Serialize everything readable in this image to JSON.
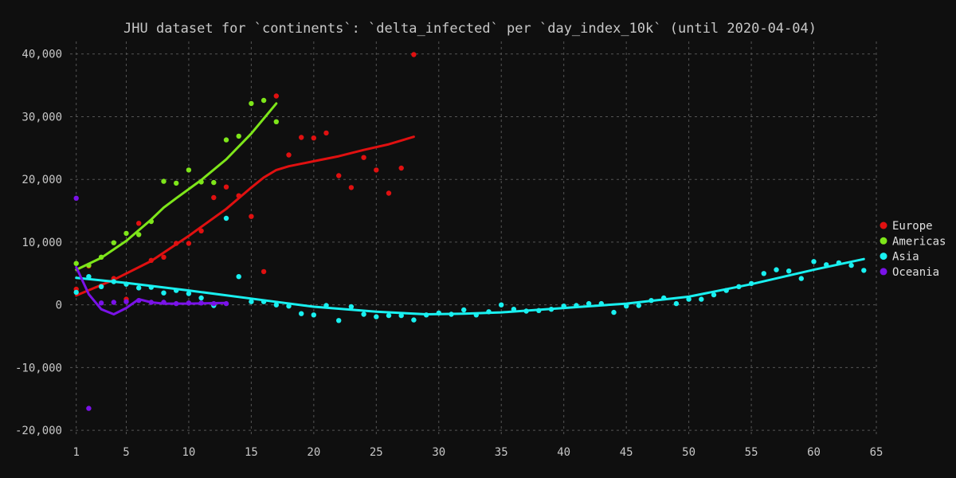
{
  "chart_data": {
    "type": "scatter",
    "title": "JHU dataset for `continents`: `delta_infected` per `day_index_10k` (until 2020-04-04)",
    "xlabel": "",
    "ylabel": "",
    "xlim": [
      0,
      65
    ],
    "ylim": [
      -21000,
      42000
    ],
    "x_ticks": [
      1,
      5,
      10,
      15,
      20,
      25,
      30,
      35,
      40,
      45,
      50,
      55,
      60,
      65
    ],
    "y_ticks": [
      -20000,
      -10000,
      0,
      10000,
      20000,
      30000,
      40000
    ],
    "y_tick_labels": [
      "-20,000",
      "-10,000",
      "0",
      "10,000",
      "20,000",
      "30,000",
      "40,000"
    ],
    "grid": true,
    "legend_position": "right",
    "series": [
      {
        "name": "Europe",
        "color": "#e01010",
        "points": [
          [
            1,
            2500
          ],
          [
            2,
            6200
          ],
          [
            3,
            3000
          ],
          [
            4,
            4200
          ],
          [
            5,
            900
          ],
          [
            6,
            13000
          ],
          [
            7,
            7100
          ],
          [
            8,
            7600
          ],
          [
            9,
            9800
          ],
          [
            10,
            9800
          ],
          [
            11,
            11800
          ],
          [
            12,
            17100
          ],
          [
            13,
            18800
          ],
          [
            14,
            17400
          ],
          [
            15,
            14100
          ],
          [
            16,
            5300
          ],
          [
            17,
            33300
          ],
          [
            18,
            23900
          ],
          [
            19,
            26700
          ],
          [
            20,
            26600
          ],
          [
            21,
            27400
          ],
          [
            22,
            20600
          ],
          [
            23,
            18700
          ],
          [
            24,
            23500
          ],
          [
            25,
            21500
          ],
          [
            26,
            17800
          ],
          [
            27,
            21800
          ],
          [
            28,
            39900
          ]
        ],
        "trend": [
          [
            1,
            1500
          ],
          [
            4,
            4000
          ],
          [
            7,
            7000
          ],
          [
            10,
            11000
          ],
          [
            13,
            15300
          ],
          [
            15,
            18700
          ],
          [
            16,
            20300
          ],
          [
            17,
            21500
          ],
          [
            18,
            22100
          ],
          [
            20,
            22900
          ],
          [
            22,
            23700
          ],
          [
            24,
            24700
          ],
          [
            26,
            25600
          ],
          [
            28,
            26800
          ]
        ]
      },
      {
        "name": "Americas",
        "color": "#7ee61a",
        "points": [
          [
            1,
            6600
          ],
          [
            2,
            6300
          ],
          [
            3,
            7600
          ],
          [
            4,
            9900
          ],
          [
            5,
            11400
          ],
          [
            6,
            11200
          ],
          [
            7,
            13300
          ],
          [
            8,
            19700
          ],
          [
            9,
            19400
          ],
          [
            10,
            21500
          ],
          [
            11,
            19600
          ],
          [
            12,
            19500
          ],
          [
            13,
            26300
          ],
          [
            14,
            26900
          ],
          [
            15,
            32100
          ],
          [
            16,
            32600
          ],
          [
            17,
            29200
          ]
        ],
        "trend": [
          [
            1,
            5600
          ],
          [
            3,
            7500
          ],
          [
            5,
            10200
          ],
          [
            7,
            13600
          ],
          [
            8,
            15500
          ],
          [
            9,
            17000
          ],
          [
            11,
            19900
          ],
          [
            13,
            23200
          ],
          [
            15,
            27300
          ],
          [
            17,
            32100
          ]
        ]
      },
      {
        "name": "Asia",
        "color": "#19f0f0",
        "points": [
          [
            1,
            2000
          ],
          [
            2,
            4500
          ],
          [
            3,
            2900
          ],
          [
            4,
            3700
          ],
          [
            5,
            3300
          ],
          [
            6,
            2700
          ],
          [
            7,
            2800
          ],
          [
            8,
            1900
          ],
          [
            9,
            2300
          ],
          [
            10,
            1800
          ],
          [
            11,
            1100
          ],
          [
            12,
            -100
          ],
          [
            13,
            13800
          ],
          [
            14,
            4500
          ],
          [
            15,
            500
          ],
          [
            16,
            500
          ],
          [
            17,
            0
          ],
          [
            18,
            -200
          ],
          [
            19,
            -1400
          ],
          [
            20,
            -1600
          ],
          [
            21,
            -100
          ],
          [
            22,
            -2500
          ],
          [
            23,
            -300
          ],
          [
            24,
            -1500
          ],
          [
            25,
            -1900
          ],
          [
            26,
            -1700
          ],
          [
            27,
            -1700
          ],
          [
            28,
            -2400
          ],
          [
            29,
            -1600
          ],
          [
            30,
            -1300
          ],
          [
            31,
            -1500
          ],
          [
            32,
            -800
          ],
          [
            33,
            -1600
          ],
          [
            34,
            -1100
          ],
          [
            35,
            0
          ],
          [
            36,
            -700
          ],
          [
            37,
            -1000
          ],
          [
            38,
            -900
          ],
          [
            39,
            -700
          ],
          [
            40,
            -200
          ],
          [
            41,
            -100
          ],
          [
            42,
            200
          ],
          [
            43,
            200
          ],
          [
            44,
            -1200
          ],
          [
            45,
            -200
          ],
          [
            46,
            -100
          ],
          [
            47,
            700
          ],
          [
            48,
            1100
          ],
          [
            49,
            200
          ],
          [
            50,
            900
          ],
          [
            51,
            900
          ],
          [
            52,
            1600
          ],
          [
            53,
            2300
          ],
          [
            54,
            2900
          ],
          [
            55,
            3400
          ],
          [
            56,
            5000
          ],
          [
            57,
            5600
          ],
          [
            58,
            5400
          ],
          [
            59,
            4200
          ],
          [
            60,
            6900
          ],
          [
            61,
            6400
          ],
          [
            62,
            6700
          ],
          [
            63,
            6300
          ],
          [
            64,
            5500
          ]
        ],
        "trend": [
          [
            1,
            4300
          ],
          [
            5,
            3500
          ],
          [
            10,
            2300
          ],
          [
            15,
            1000
          ],
          [
            20,
            -300
          ],
          [
            25,
            -1100
          ],
          [
            29,
            -1500
          ],
          [
            32,
            -1400
          ],
          [
            35,
            -1200
          ],
          [
            40,
            -500
          ],
          [
            45,
            200
          ],
          [
            50,
            1300
          ],
          [
            55,
            3300
          ],
          [
            60,
            5600
          ],
          [
            64,
            7300
          ]
        ]
      },
      {
        "name": "Oceania",
        "color": "#7a12e8",
        "points": [
          [
            1,
            17000
          ],
          [
            2,
            -16500
          ],
          [
            3,
            300
          ],
          [
            4,
            400
          ],
          [
            5,
            500
          ],
          [
            6,
            700
          ],
          [
            7,
            400
          ],
          [
            8,
            400
          ],
          [
            9,
            200
          ],
          [
            10,
            300
          ],
          [
            11,
            300
          ],
          [
            12,
            200
          ],
          [
            13,
            200
          ]
        ],
        "trend": [
          [
            1,
            6000
          ],
          [
            2,
            1700
          ],
          [
            3,
            -700
          ],
          [
            4,
            -1500
          ],
          [
            5,
            -500
          ],
          [
            6,
            900
          ],
          [
            7,
            400
          ],
          [
            8,
            200
          ],
          [
            10,
            200
          ],
          [
            13,
            300
          ]
        ]
      }
    ]
  }
}
